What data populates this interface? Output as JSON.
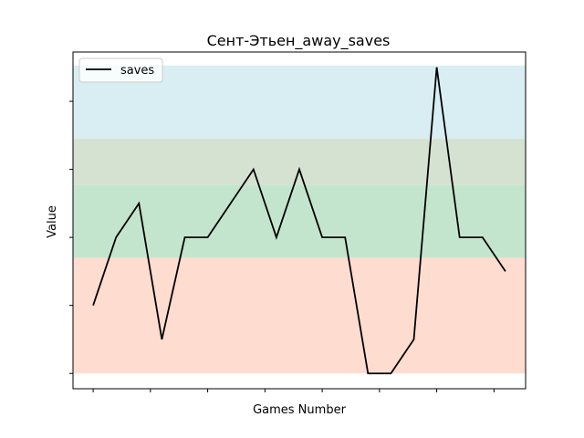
{
  "chart_data": {
    "type": "line",
    "title": "Сент-Этьен_away_saves",
    "xlabel": "Games Number",
    "ylabel": "Value",
    "x": [
      0,
      1,
      2,
      3,
      4,
      5,
      6,
      7,
      8,
      9,
      10,
      11,
      12,
      13,
      14,
      15,
      16,
      17,
      18
    ],
    "series": [
      {
        "name": "saves",
        "color": "#000000",
        "values": [
          2,
          4,
          5,
          1,
          4,
          4,
          5,
          6,
          4,
          6,
          4,
          4,
          0,
          0,
          1,
          9,
          4,
          4,
          3
        ]
      }
    ],
    "bands": [
      {
        "from": 0,
        "to": 3.4,
        "color": "#ffdacd"
      },
      {
        "from": 3.4,
        "to": 5.55,
        "color": "#c0e4cb"
      },
      {
        "from": 5.55,
        "to": 6.9,
        "color": "#d3e0cf"
      },
      {
        "from": 6.9,
        "to": 9.05,
        "color": "#d6edf1"
      }
    ],
    "xlim": [
      -0.88,
      18.88
    ],
    "ylim": [
      -0.45,
      9.45
    ],
    "xticks": [
      0,
      2.5,
      5,
      7.5,
      10,
      12.5,
      15,
      17.5
    ],
    "yticks": [
      0,
      2,
      4,
      6,
      8
    ],
    "legend": "upper left",
    "grid": false
  }
}
